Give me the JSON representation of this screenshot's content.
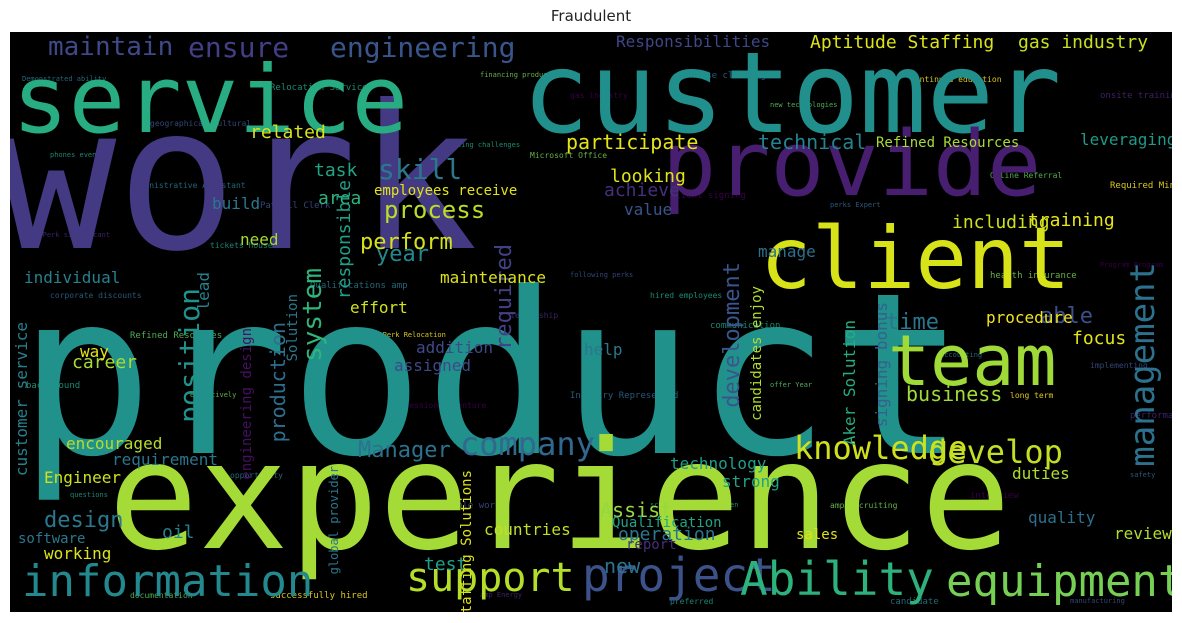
{
  "title": "Fraudulent",
  "words": [
    {
      "text": "product",
      "color": "#21918c"
    },
    {
      "text": "experience",
      "color": "#a5db36"
    },
    {
      "text": "work",
      "color": "#443983"
    },
    {
      "text": "customer",
      "color": "#21908d"
    },
    {
      "text": "service",
      "color": "#27ad81"
    },
    {
      "text": "provide",
      "color": "#481f70"
    },
    {
      "text": "client",
      "color": "#d8e219"
    },
    {
      "text": "team",
      "color": "#a0da39"
    },
    {
      "text": "information",
      "color": "#23898e"
    },
    {
      "text": "project",
      "color": "#3b528b"
    },
    {
      "text": "Ability",
      "color": "#2db27d"
    },
    {
      "text": "equipment",
      "color": "#75d054"
    },
    {
      "text": "support",
      "color": "#b5de2b"
    },
    {
      "text": "company",
      "color": "#31688e"
    },
    {
      "text": "knowledge",
      "color": "#d0e11c"
    },
    {
      "text": "develop",
      "color": "#c2df23"
    },
    {
      "text": "management",
      "color": "#2c728e"
    },
    {
      "text": "engineering",
      "color": "#39568c"
    },
    {
      "text": "ensure",
      "color": "#433e85"
    },
    {
      "text": "maintain",
      "color": "#3e4989"
    },
    {
      "text": "Aptitude Staffing",
      "color": "#dde318"
    },
    {
      "text": "gas industry",
      "color": "#c8e020"
    },
    {
      "text": "Responsibilities",
      "color": "#3f4788"
    },
    {
      "text": "participate",
      "color": "#e5e419"
    },
    {
      "text": "technical",
      "color": "#26828e"
    },
    {
      "text": "skill",
      "color": "#2a788e"
    },
    {
      "text": "process",
      "color": "#b8de29"
    },
    {
      "text": "perform",
      "color": "#d5e21a"
    },
    {
      "text": "position",
      "color": "#20928c"
    },
    {
      "text": "system",
      "color": "#2fb47c"
    },
    {
      "text": "production",
      "color": "#2e6e8e"
    },
    {
      "text": "required",
      "color": "#424086"
    },
    {
      "text": "development",
      "color": "#3a548c"
    },
    {
      "text": "Aker Solution",
      "color": "#26ad81"
    },
    {
      "text": "business",
      "color": "#a2da37"
    },
    {
      "text": "time",
      "color": "#2a768e"
    },
    {
      "text": "able",
      "color": "#3c4f8a"
    },
    {
      "text": "focus",
      "color": "#e2e418"
    },
    {
      "text": "procedure",
      "color": "#f1e51d"
    },
    {
      "text": "training",
      "color": "#e7e419"
    },
    {
      "text": "including",
      "color": "#cde11d"
    },
    {
      "text": "leveraging",
      "color": "#1f9a8a"
    },
    {
      "text": "Refined Resources",
      "color": "#a8db34"
    },
    {
      "text": "Manager",
      "color": "#2c728e"
    },
    {
      "text": "requirement",
      "color": "#2a768e"
    },
    {
      "text": "encouraged",
      "color": "#b5de2b"
    },
    {
      "text": "Engineer",
      "color": "#cde11d"
    },
    {
      "text": "customer service",
      "color": "#26828e"
    },
    {
      "text": "design",
      "color": "#2a778e"
    },
    {
      "text": "oil",
      "color": "#26818e"
    },
    {
      "text": "working",
      "color": "#dde318"
    },
    {
      "text": "software",
      "color": "#2a788e"
    },
    {
      "text": "test",
      "color": "#1fa088"
    },
    {
      "text": "countries",
      "color": "#c0df25"
    },
    {
      "text": "operation",
      "color": "#2a788e"
    },
    {
      "text": "Assist",
      "color": "#95d840"
    },
    {
      "text": "Qualification",
      "color": "#20a386"
    },
    {
      "text": "report",
      "color": "#472d7b"
    },
    {
      "text": "new",
      "color": "#2c738e"
    },
    {
      "text": "technology",
      "color": "#1f9e89"
    },
    {
      "text": "strong",
      "color": "#20a486"
    },
    {
      "text": "duties",
      "color": "#b0dd2f"
    },
    {
      "text": "quality",
      "color": "#2d708e"
    },
    {
      "text": "review",
      "color": "#b2dd2d"
    },
    {
      "text": "sales",
      "color": "#dde318"
    },
    {
      "text": "task",
      "color": "#20a486"
    },
    {
      "text": "related",
      "color": "#d8e219"
    },
    {
      "text": "area",
      "color": "#2db27d"
    },
    {
      "text": "build",
      "color": "#2a778e"
    },
    {
      "text": "need",
      "color": "#a2da37"
    },
    {
      "text": "year",
      "color": "#23898e"
    },
    {
      "text": "individual",
      "color": "#26818e"
    },
    {
      "text": "maintenance",
      "color": "#dde318"
    },
    {
      "text": "effort",
      "color": "#d2e21b"
    },
    {
      "text": "addition",
      "color": "#3e4a89"
    },
    {
      "text": "career",
      "color": "#a8db34"
    },
    {
      "text": "way",
      "color": "#e2e418"
    },
    {
      "text": "assigned",
      "color": "#3e4989"
    },
    {
      "text": "help",
      "color": "#2a778e"
    },
    {
      "text": "responsible",
      "color": "#1fa088"
    },
    {
      "text": "looking",
      "color": "#dde318"
    },
    {
      "text": "achieve",
      "color": "#46307e"
    },
    {
      "text": "value",
      "color": "#39558c"
    },
    {
      "text": "employees receive",
      "color": "#e2e418"
    },
    {
      "text": "lead",
      "color": "#26828e"
    },
    {
      "text": "manage",
      "color": "#2d708e"
    },
    {
      "text": "candidates enjoy",
      "color": "#b2dd2d"
    },
    {
      "text": "signing bonus",
      "color": "#34618d"
    },
    {
      "text": "Staffing Solutions",
      "color": "#dde318"
    },
    {
      "text": "Solution",
      "color": "#2a788e"
    },
    {
      "text": "engineering design",
      "color": "#471063"
    },
    {
      "text": "global provider",
      "color": "#2a788e"
    }
  ],
  "filler": [
    "Demonstrated ability",
    "geographical cultural",
    "Relocation Services",
    "financing products",
    "gas industry",
    "house cleaning",
    "new technologies",
    "continued education",
    "onsite training",
    "phones event",
    "Administrative Assistant",
    "Payroll Clerk",
    "exciting challenges",
    "Microsoft Office",
    "client signing",
    "perks Expert",
    "Online Referral",
    "Required Minimum",
    "AnyPerk significant",
    "tickets house",
    "Qualifications amp",
    "following perks",
    "hired employees",
    "health insurance",
    "Program Program",
    "corporate discounts",
    "Refined Resources",
    "AnyPerk Relocation",
    "leadership",
    "communication",
    "accounting",
    "implementing",
    "background",
    "effectively",
    "professional venture",
    "Industry Represented",
    "offer Year",
    "long term",
    "performance",
    "questions",
    "opportunity",
    "flexible work",
    "scientifically proven",
    "amp Recruiting",
    "interview",
    "safety",
    "documentation",
    "successfully hired",
    "amp Energy",
    "preferred",
    "candidate",
    "manufacturing",
    "commitment",
    "implementation",
    "Managers pr",
    "tenured industry",
    "Human Resource"
  ]
}
